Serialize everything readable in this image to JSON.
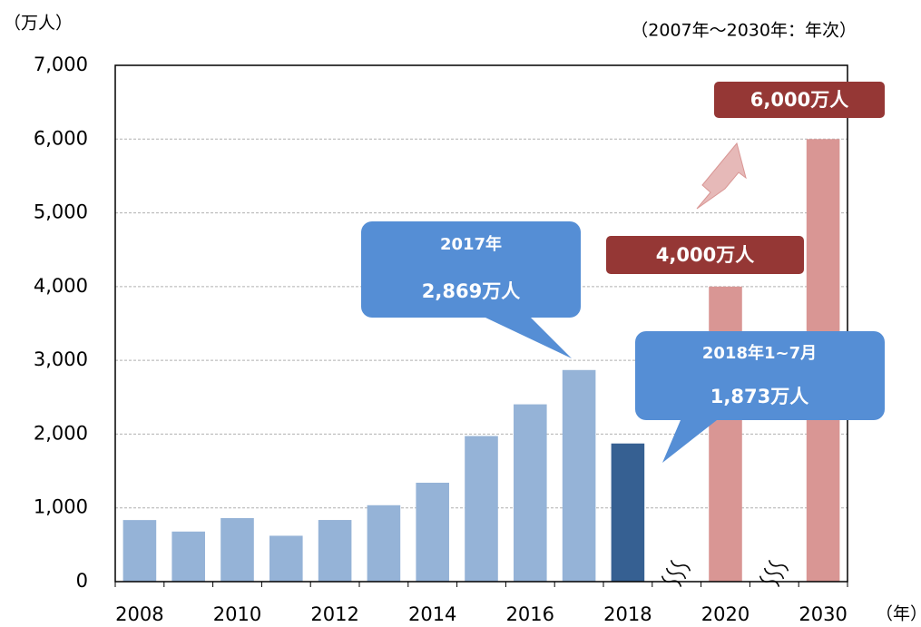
{
  "chart_data": {
    "type": "bar",
    "y_unit": "（万人）",
    "subtitle": "（2007年～2030年：年次）",
    "x_unit": "（年）",
    "categories": [
      "2008",
      null,
      "2010",
      null,
      "2012",
      null,
      "2014",
      null,
      "2016",
      null,
      "2018",
      null,
      "2020",
      null,
      "2030"
    ],
    "values": [
      835,
      679,
      861,
      622,
      836,
      1036,
      1341,
      1974,
      2404,
      2869,
      1873,
      null,
      4000,
      null,
      6000
    ],
    "colors": [
      "#95b3d7",
      "#95b3d7",
      "#95b3d7",
      "#95b3d7",
      "#95b3d7",
      "#95b3d7",
      "#95b3d7",
      "#95b3d7",
      "#95b3d7",
      "#95b3d7",
      "#366092",
      null,
      "#d99694",
      null,
      "#d99694"
    ],
    "ylim": [
      0,
      7000
    ],
    "yticks": [
      0,
      {
        "value": 1000,
        "label": "1,000"
      },
      {
        "value": 2000,
        "label": "2,000"
      },
      {
        "value": 3000,
        "label": "3,000"
      },
      {
        "value": 4000,
        "label": "4,000"
      },
      {
        "value": 5000,
        "label": "5,000"
      },
      {
        "value": 6000,
        "label": "6,000"
      },
      {
        "value": 7000,
        "label": "7,000"
      }
    ],
    "grid": true,
    "annotations": [
      "2017年",
      "2,869万人",
      "2018年1~7月",
      "1,873万人",
      "4,000万人",
      "6,000万人"
    ]
  }
}
